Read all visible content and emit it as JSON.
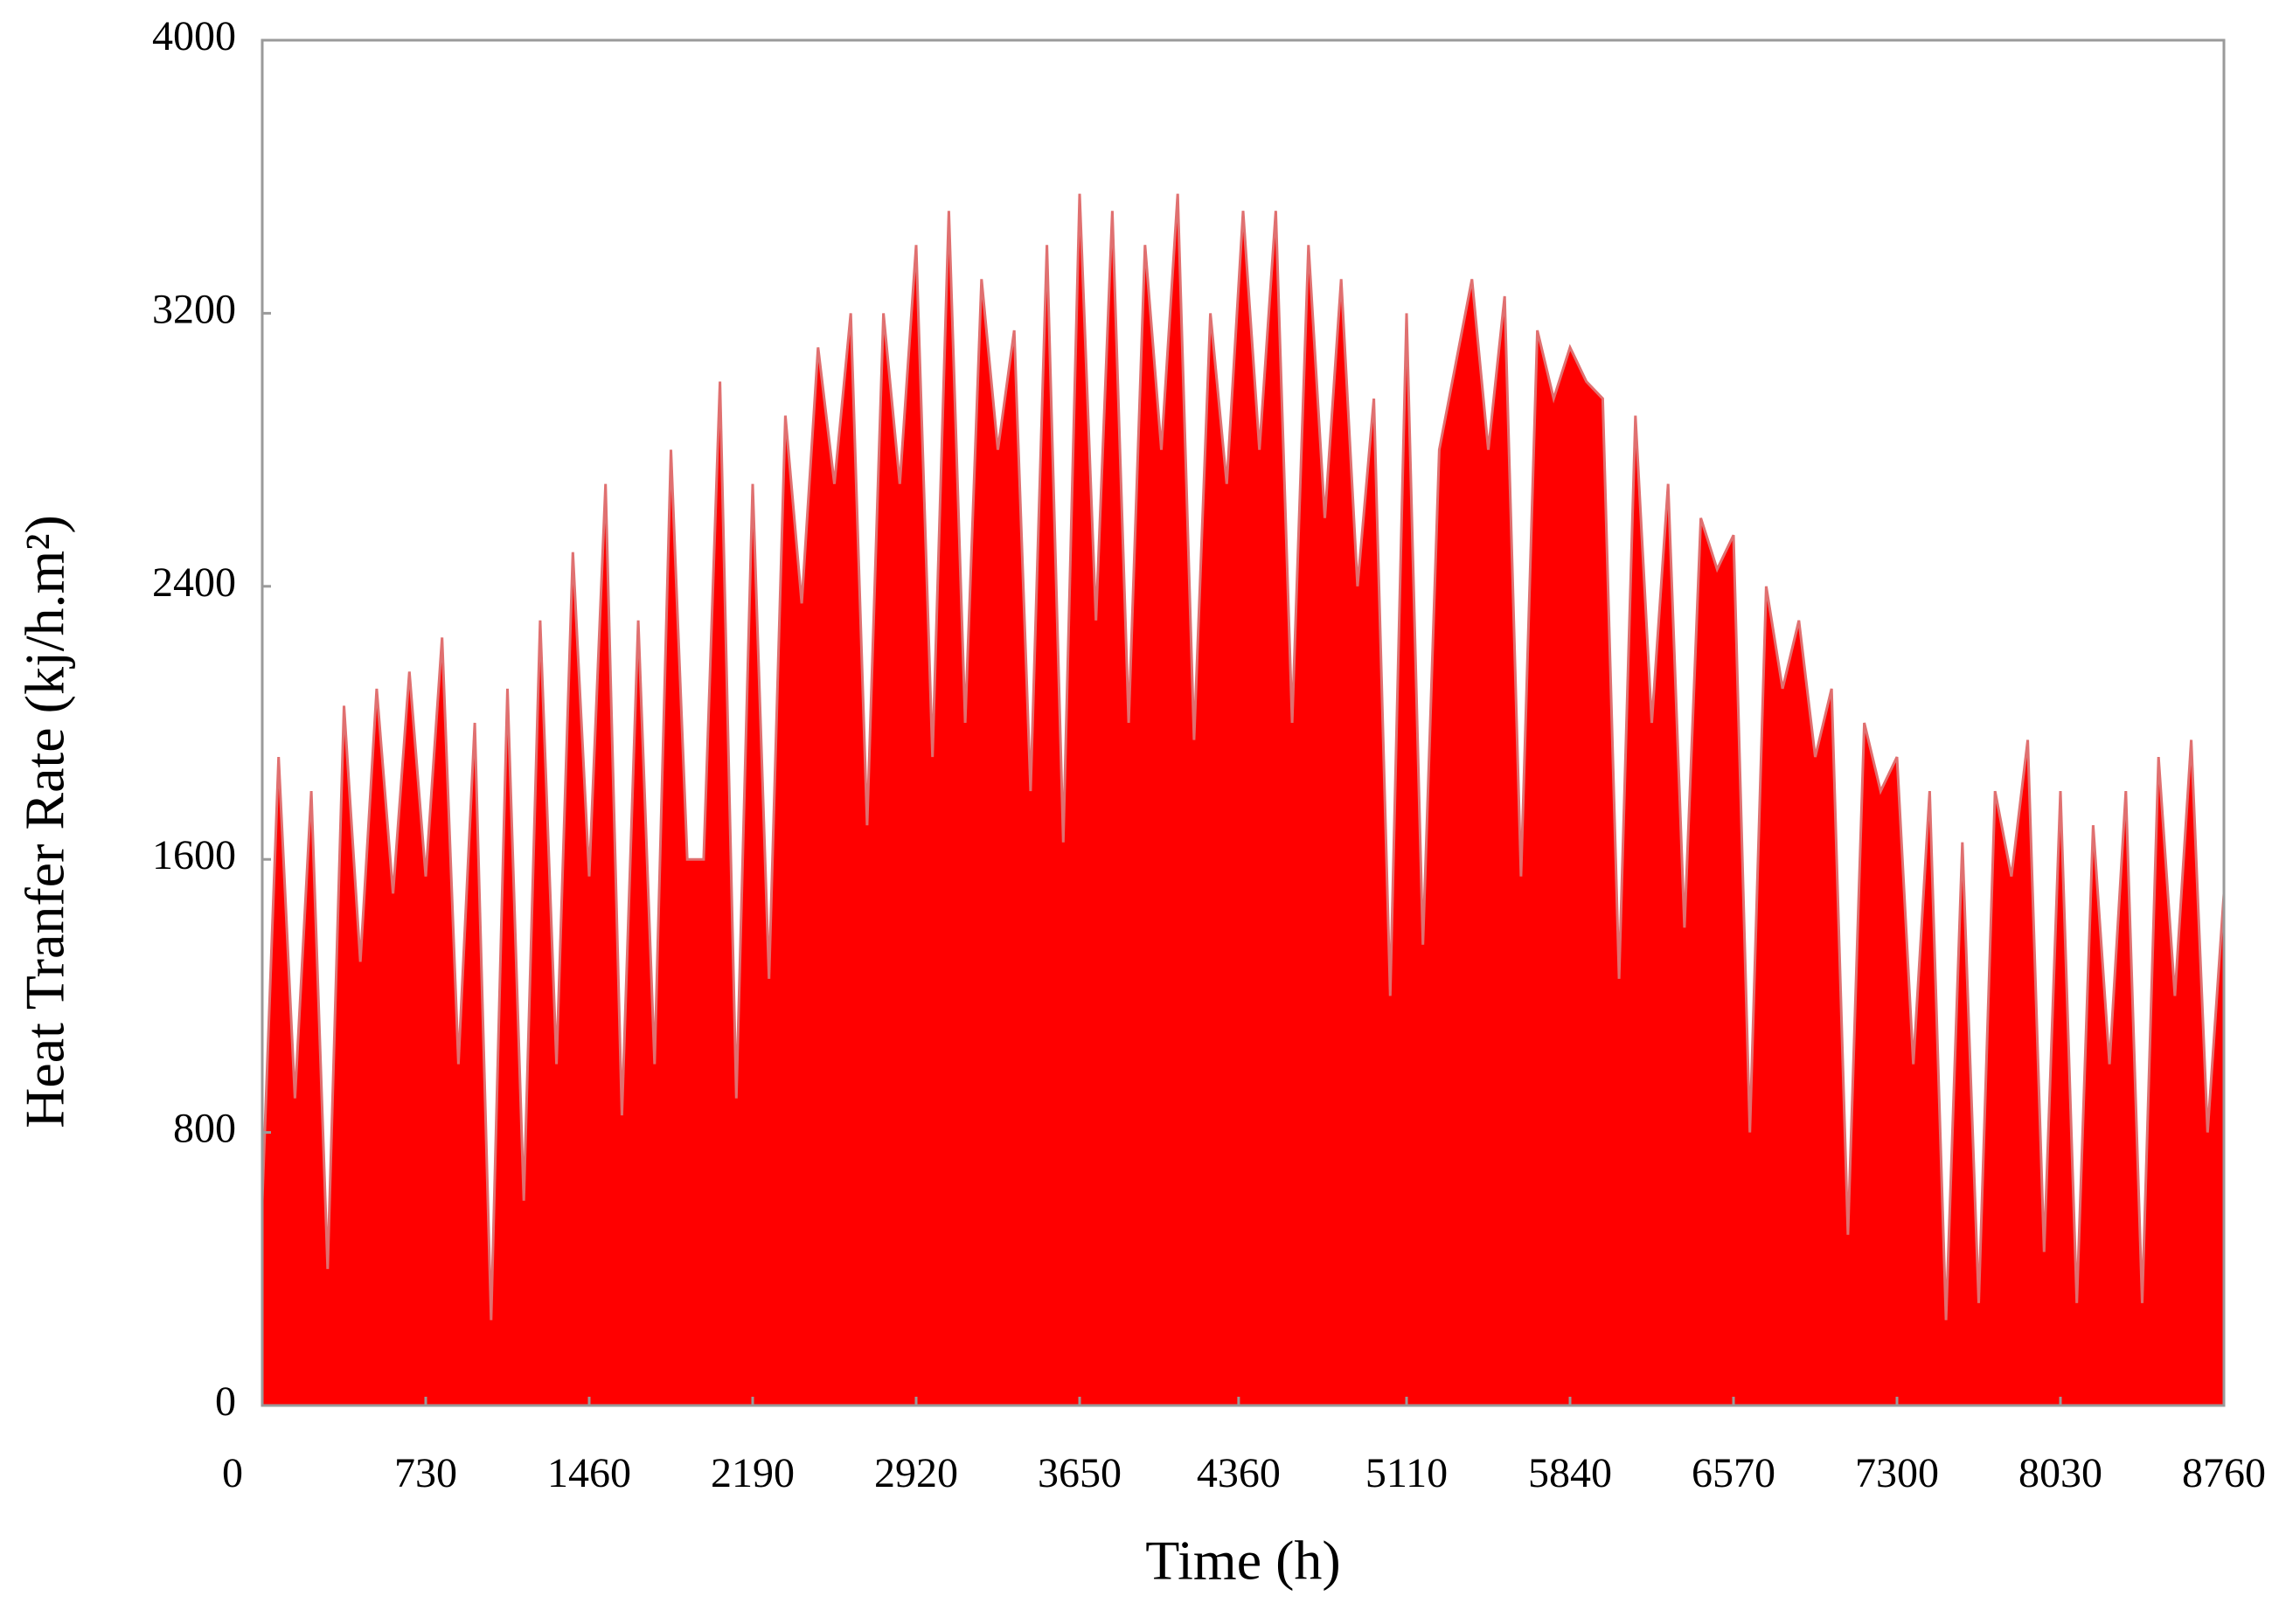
{
  "chart_data": {
    "type": "area",
    "xlabel": "Time (h)",
    "ylabel": "Heat Tranfer Rate (kj/h.m²)",
    "x": [
      0,
      73,
      146,
      219,
      292,
      365,
      438,
      511,
      584,
      657,
      730,
      803,
      876,
      949,
      1022,
      1095,
      1168,
      1241,
      1314,
      1387,
      1460,
      1533,
      1606,
      1679,
      1752,
      1825,
      1898,
      1971,
      2044,
      2117,
      2190,
      2263,
      2336,
      2409,
      2482,
      2555,
      2628,
      2701,
      2774,
      2847,
      2920,
      2993,
      3066,
      3139,
      3212,
      3285,
      3358,
      3431,
      3504,
      3577,
      3650,
      3723,
      3796,
      3869,
      3942,
      4015,
      4088,
      4161,
      4234,
      4307,
      4380,
      4453,
      4526,
      4599,
      4672,
      4745,
      4818,
      4891,
      4964,
      5037,
      5110,
      5183,
      5256,
      5329,
      5402,
      5475,
      5548,
      5621,
      5694,
      5767,
      5840,
      5913,
      5986,
      6059,
      6132,
      6205,
      6278,
      6351,
      6424,
      6497,
      6570,
      6643,
      6716,
      6789,
      6862,
      6935,
      7008,
      7081,
      7154,
      7227,
      7300,
      7373,
      7446,
      7519,
      7592,
      7665,
      7738,
      7811,
      7884,
      7957,
      8030,
      8103,
      8176,
      8249,
      8322,
      8395,
      8468,
      8541,
      8614,
      8687,
      8760
    ],
    "values": [
      600,
      1900,
      900,
      1800,
      400,
      2050,
      1300,
      2100,
      1500,
      2150,
      1550,
      2250,
      1000,
      2000,
      250,
      2100,
      600,
      2300,
      1000,
      2500,
      1550,
      2700,
      850,
      2300,
      1000,
      2800,
      1600,
      1600,
      3000,
      900,
      2700,
      1250,
      2900,
      2350,
      3100,
      2700,
      3200,
      1700,
      3200,
      2700,
      3400,
      1900,
      3500,
      2000,
      3300,
      2800,
      3150,
      1800,
      3400,
      1650,
      3550,
      2300,
      3500,
      2000,
      3400,
      2800,
      3550,
      1950,
      3200,
      2700,
      3500,
      2800,
      3500,
      2000,
      3400,
      2600,
      3300,
      2400,
      2950,
      1200,
      3200,
      1350,
      2800,
      3050,
      3300,
      2800,
      3250,
      1550,
      3150,
      2950,
      3100,
      3000,
      2950,
      1250,
      2900,
      2000,
      2700,
      1400,
      2600,
      2450,
      2550,
      800,
      2400,
      2100,
      2300,
      1900,
      2100,
      500,
      2000,
      1800,
      1900,
      1000,
      1800,
      250,
      1650,
      300,
      1800,
      1550,
      1950,
      450,
      1800,
      300,
      1700,
      1000,
      1800,
      300,
      1900,
      1200,
      1950,
      800,
      1500
    ],
    "color": "#ff0000",
    "xlim": [
      0,
      8760
    ],
    "ylim": [
      0,
      4000
    ],
    "xticks": [
      0,
      730,
      1460,
      2190,
      2920,
      3650,
      4360,
      5110,
      5840,
      6570,
      7300,
      8030,
      8760
    ],
    "yticks": [
      0,
      800,
      1600,
      2400,
      3200,
      4000
    ],
    "grid": false
  }
}
